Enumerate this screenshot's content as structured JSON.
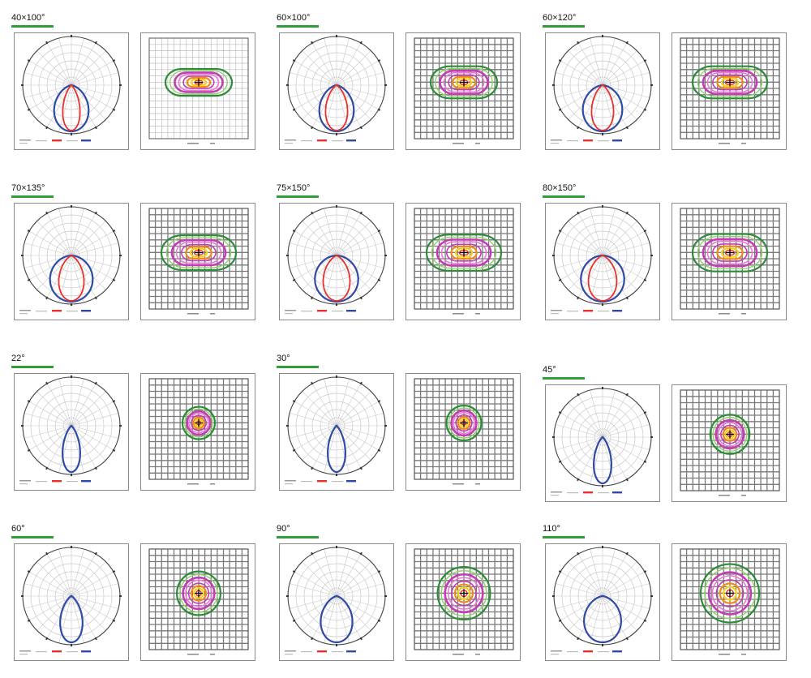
{
  "beam_angles": [
    {
      "label": "40×100°",
      "type": "elliptical",
      "narrow": 40,
      "wide": 100
    },
    {
      "label": "60×100°",
      "type": "elliptical",
      "narrow": 60,
      "wide": 100
    },
    {
      "label": "60×120°",
      "type": "elliptical",
      "narrow": 60,
      "wide": 120
    },
    {
      "label": "70×135°",
      "type": "elliptical",
      "narrow": 70,
      "wide": 135
    },
    {
      "label": "75×150°",
      "type": "elliptical",
      "narrow": 75,
      "wide": 150
    },
    {
      "label": "80×150°",
      "type": "elliptical",
      "narrow": 80,
      "wide": 150
    },
    {
      "label": "22°",
      "type": "round",
      "narrow": 22,
      "wide": 22
    },
    {
      "label": "30°",
      "type": "round",
      "narrow": 30,
      "wide": 30
    },
    {
      "label": "45°",
      "type": "round",
      "narrow": 45,
      "wide": 45
    },
    {
      "label": "60°",
      "type": "round",
      "narrow": 60,
      "wide": 60
    },
    {
      "label": "90°",
      "type": "round",
      "narrow": 90,
      "wide": 90
    },
    {
      "label": "110°",
      "type": "round",
      "narrow": 110,
      "wide": 110
    }
  ],
  "colors": {
    "title_underline": "#2e9e3a",
    "curve_c0": "#e8302c",
    "curve_c90": "#2f4aa6",
    "polar_grid": "#c9c9c9",
    "iso_outer": "#2e8b3a",
    "iso_light_green": "#8fd36a",
    "iso_magenta": "#c23fb3",
    "iso_pink": "#e87ad8",
    "iso_orange": "#f08a1c",
    "iso_yellow": "#f6d21f",
    "iso_red": "#e8302c"
  }
}
